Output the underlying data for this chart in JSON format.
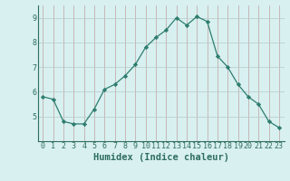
{
  "x": [
    0,
    1,
    2,
    3,
    4,
    5,
    6,
    7,
    8,
    9,
    10,
    11,
    12,
    13,
    14,
    15,
    16,
    17,
    18,
    19,
    20,
    21,
    22,
    23
  ],
  "y": [
    5.8,
    5.7,
    4.8,
    4.7,
    4.7,
    5.3,
    6.1,
    6.3,
    6.65,
    7.1,
    7.8,
    8.2,
    8.5,
    9.0,
    8.7,
    9.05,
    8.85,
    7.45,
    7.0,
    6.3,
    5.8,
    5.5,
    4.8,
    4.55
  ],
  "line_color": "#2e7d6e",
  "marker": "D",
  "marker_size": 2.2,
  "bg_color": "#d8f0f0",
  "grid_color_x": "#c0a0a0",
  "grid_color_y": "#b8c8c8",
  "xlabel": "Humidex (Indice chaleur)",
  "ylim": [
    4.0,
    9.5
  ],
  "xlim": [
    -0.5,
    23.5
  ],
  "yticks": [
    5,
    6,
    7,
    8,
    9
  ],
  "xticks": [
    0,
    1,
    2,
    3,
    4,
    5,
    6,
    7,
    8,
    9,
    10,
    11,
    12,
    13,
    14,
    15,
    16,
    17,
    18,
    19,
    20,
    21,
    22,
    23
  ],
  "tick_color": "#2e6e5e",
  "axis_color": "#2e6e5e",
  "label_fontsize": 7.5,
  "tick_fontsize": 6.0
}
